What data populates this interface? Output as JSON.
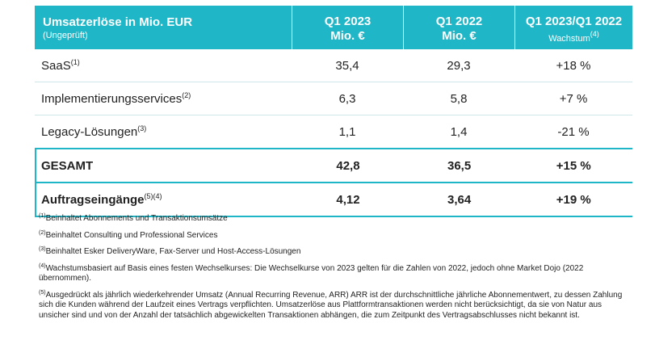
{
  "table": {
    "header": {
      "title": "Umsatzerlöse in Mio. EUR",
      "subtitle": "(Ungeprüft)",
      "col1_line1": "Q1 2023",
      "col1_line2": "Mio. €",
      "col2_line1": "Q1 2022",
      "col2_line2": "Mio. €",
      "col3_line1": "Q1 2023/Q1 2022",
      "col3_line2": "Wachstum",
      "col3_sup": "(4)"
    },
    "rows": [
      {
        "label": "SaaS",
        "sup": "(1)",
        "q1_2023": "35,4",
        "q1_2022": "29,3",
        "growth": "+18 %"
      },
      {
        "label": "Implementierungsservices",
        "sup": "(2)",
        "q1_2023": "6,3",
        "q1_2022": "5,8",
        "growth": "+7 %"
      },
      {
        "label": "Legacy-Lösungen",
        "sup": "(3)",
        "q1_2023": "1,1",
        "q1_2022": "1,4",
        "growth": "-21 %"
      },
      {
        "label": "GESAMT",
        "sup": "",
        "q1_2023": "42,8",
        "q1_2022": "36,5",
        "growth": "+15 %"
      },
      {
        "label": "Auftragseingänge",
        "sup": "(5)(4)",
        "q1_2023": "4,12",
        "q1_2022": "3,64",
        "growth": "+19 %"
      }
    ]
  },
  "footnotes": [
    {
      "sup": "(1)",
      "text": "Beinhaltet Abonnements und Transaktionsumsätze"
    },
    {
      "sup": "(2)",
      "text": "Beinhaltet Consulting und Professional Services"
    },
    {
      "sup": "(3)",
      "text": "Beinhaltet Esker DeliveryWare, Fax-Server und Host-Access-Lösungen"
    },
    {
      "sup": "(4)",
      "text": "Wachstumsbasiert auf Basis eines festen Wechselkurses: Die Wechselkurse von 2023 gelten für die Zahlen von 2022, jedoch ohne Market Dojo (2022 übernommen)."
    },
    {
      "sup": "(5)",
      "text": "Ausgedrückt als jährlich wiederkehrender Umsatz (Annual Recurring Revenue, ARR) ARR ist der durchschnittliche jährliche Abonnementwert, zu dessen Zahlung sich die Kunden während der Laufzeit eines Vertrags verpflichten. Umsatzerlöse aus Plattformtransaktionen werden nicht berücksichtigt, da sie von Natur aus unsicher sind und von der Anzahl der tatsächlich abgewickelten Transaktionen abhängen, die zum Zeitpunkt des Vertragsabschlusses nicht bekannt ist."
    }
  ]
}
